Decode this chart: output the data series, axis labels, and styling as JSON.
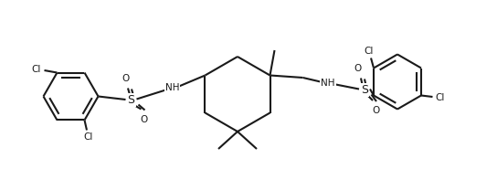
{
  "bg_color": "#ffffff",
  "line_color": "#1a1a1a",
  "lw": 1.5,
  "figsize": [
    5.44,
    2.08
  ],
  "dpi": 100,
  "xlim": [
    0,
    10.88
  ],
  "ylim": [
    0,
    4.16
  ]
}
